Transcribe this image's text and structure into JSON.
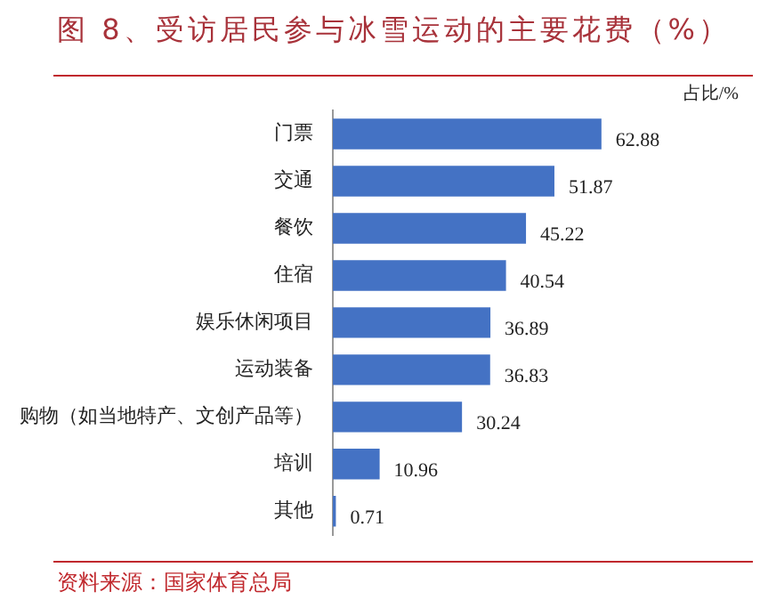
{
  "chart_data": {
    "type": "bar",
    "orientation": "horizontal",
    "title": "图 8、受访居民参与冰雪运动的主要花费（%）",
    "xlabel": "占比/%",
    "categories": [
      "门票",
      "交通",
      "餐饮",
      "住宿",
      "娱乐休闲项目",
      "运动装备",
      "购物（如当地特产、文创产品等）",
      "培训",
      "其他"
    ],
    "values": [
      62.88,
      51.87,
      45.22,
      40.54,
      36.89,
      36.83,
      30.24,
      10.96,
      0.71
    ],
    "color": "#4472c4",
    "data_labels": true,
    "annotations": [
      "资料来源：国家体育总局"
    ]
  }
}
